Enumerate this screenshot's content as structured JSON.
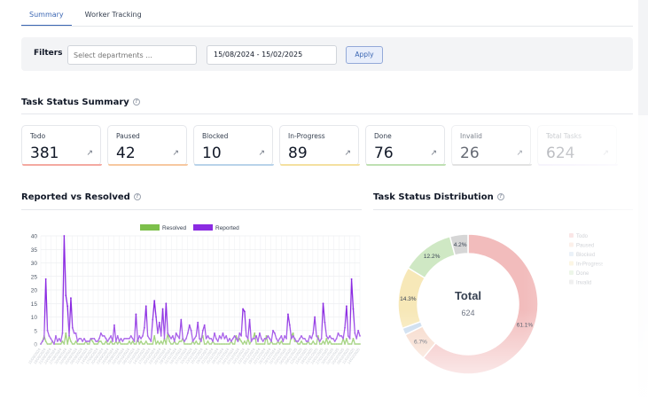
{
  "tabs": [
    {
      "label": "Summary",
      "active": true
    },
    {
      "label": "Worker Tracking",
      "active": false
    }
  ],
  "filters": {
    "label": "Filters",
    "department_placeholder": "Select departments ...",
    "date_range": "15/08/2024 - 15/02/2025",
    "apply_label": "Apply"
  },
  "summary": {
    "title": "Task Status Summary",
    "cards": [
      {
        "label": "Todo",
        "value": "381",
        "color": "#f4a9a1"
      },
      {
        "label": "Paused",
        "value": "42",
        "color": "#f7c8a0"
      },
      {
        "label": "Blocked",
        "value": "10",
        "color": "#b9d3ea"
      },
      {
        "label": "In-Progress",
        "value": "89",
        "color": "#f4e0a0"
      },
      {
        "label": "Done",
        "value": "76",
        "color": "#bfe0b3"
      },
      {
        "label": "Invalid",
        "value": "26",
        "color": "#d4d4d4"
      },
      {
        "label": "Total Tasks",
        "value": "624",
        "color": "#e5dcf7"
      }
    ]
  },
  "reported_resolved": {
    "title": "Reported vs Resolved"
  },
  "distribution": {
    "title": "Task Status Distribution",
    "center_label": "Total",
    "center_value": "624"
  },
  "chart_data": [
    {
      "type": "line",
      "title": "Reported vs Resolved",
      "ylim": [
        0,
        40
      ],
      "yticks": [
        0,
        5,
        10,
        15,
        20,
        25,
        30,
        35,
        40
      ],
      "xtick_labels": [
        "15/08/2024",
        "18/08/2024",
        "21/08/2024",
        "24/08/2024",
        "27/08/2024",
        "30/08/2024",
        "02/09/2024",
        "05/09/2024",
        "08/09/2024",
        "11/09/2024",
        "14/09/2024",
        "17/09/2024",
        "20/09/2024",
        "23/09/2024",
        "26/09/2024",
        "29/09/2024",
        "02/10/2024",
        "05/10/2024",
        "08/10/2024",
        "11/10/2024",
        "14/10/2024",
        "17/10/2024",
        "20/10/2024",
        "23/10/2024",
        "26/10/2024",
        "29/10/2024",
        "01/11/2024",
        "04/11/2024",
        "07/11/2024",
        "10/11/2024",
        "13/11/2024",
        "16/11/2024",
        "19/11/2024",
        "22/11/2024",
        "25/11/2024",
        "28/11/2024",
        "01/12/2024",
        "04/12/2024",
        "07/12/2024",
        "10/12/2024",
        "13/12/2024",
        "16/12/2024",
        "19/12/2024",
        "22/12/2024",
        "25/12/2024",
        "28/12/2024",
        "31/12/2024",
        "03/01/2025",
        "06/01/2025",
        "09/01/2025",
        "12/01/2025",
        "15/01/2025",
        "18/01/2025",
        "21/01/2025",
        "24/01/2025",
        "27/01/2025",
        "30/01/2025",
        "02/02/2025",
        "05/02/2025",
        "08/02/2025",
        "11/02/2025",
        "14/02/2025"
      ],
      "legend": [
        "Resolved",
        "Reported"
      ],
      "legend_position": "top",
      "series": [
        {
          "name": "Resolved",
          "color": "#7dc04b",
          "values": [
            0,
            1,
            3,
            1,
            0,
            0,
            0,
            1,
            0,
            0,
            0,
            0,
            0,
            1,
            0,
            4,
            0,
            3,
            1,
            0,
            0,
            1,
            0,
            0,
            0,
            0,
            0,
            1,
            0,
            0,
            2,
            1,
            0,
            0,
            0,
            1,
            1,
            0,
            0,
            1,
            0,
            0,
            1,
            0,
            0,
            1,
            0,
            1,
            0,
            0,
            0,
            0,
            0,
            1,
            0,
            1,
            0,
            0,
            2,
            0,
            1,
            0,
            0,
            1,
            0,
            0,
            0,
            0,
            3,
            0,
            1,
            0,
            1,
            0,
            2,
            0,
            4,
            1,
            0,
            0,
            1,
            0,
            0,
            1,
            1,
            2,
            0,
            0,
            0,
            0,
            0,
            1,
            0,
            1,
            0,
            0,
            2,
            3,
            0,
            0,
            1,
            0,
            0,
            1,
            0,
            0,
            0,
            0,
            0,
            0,
            0,
            0,
            0,
            0,
            1,
            0,
            0,
            3,
            1,
            2,
            1,
            0,
            1,
            0,
            2,
            0,
            1,
            2,
            4,
            0,
            0,
            0,
            0,
            0,
            0,
            3,
            0,
            0,
            1,
            0,
            0,
            0,
            1,
            0,
            1,
            0,
            0,
            0,
            0,
            0,
            3,
            4,
            1,
            1,
            0,
            0,
            1,
            0,
            0,
            0,
            1,
            0,
            0,
            1,
            0,
            0,
            3,
            0,
            0,
            1,
            0,
            2,
            0,
            1,
            0,
            0,
            0,
            0,
            0,
            0,
            0,
            2,
            0,
            2,
            0,
            0,
            0,
            2,
            0,
            0,
            0,
            0
          ]
        },
        {
          "name": "Reported",
          "color": "#8b2be2",
          "values": [
            0,
            1,
            2,
            24,
            5,
            3,
            2,
            1,
            0,
            3,
            1,
            2,
            1,
            4,
            40,
            18,
            14,
            3,
            17,
            6,
            4,
            4,
            1,
            2,
            2,
            1,
            2,
            1,
            1,
            1,
            2,
            2,
            2,
            1,
            1,
            2,
            4,
            3,
            3,
            2,
            1,
            2,
            3,
            1,
            7,
            1,
            3,
            1,
            2,
            1,
            2,
            2,
            2,
            2,
            3,
            2,
            1,
            11,
            1,
            3,
            2,
            3,
            6,
            14,
            3,
            2,
            1,
            9,
            16,
            10,
            4,
            8,
            3,
            13,
            2,
            15,
            4,
            3,
            2,
            3,
            1,
            4,
            3,
            2,
            9,
            2,
            1,
            2,
            4,
            7,
            5,
            1,
            2,
            3,
            8,
            2,
            1,
            5,
            7,
            2,
            3,
            2,
            2,
            1,
            4,
            2,
            1,
            3,
            2,
            4,
            2,
            3,
            1,
            2,
            1,
            2,
            3,
            2,
            1,
            4,
            3,
            13,
            12,
            3,
            2,
            9,
            1,
            2,
            2,
            3,
            1,
            4,
            2,
            1,
            2,
            2,
            3,
            2,
            1,
            5,
            4,
            2,
            1,
            2,
            3,
            1,
            3,
            2,
            11,
            7,
            2,
            3,
            2,
            1,
            1,
            2,
            3,
            2,
            2,
            1,
            1,
            3,
            2,
            4,
            10,
            3,
            2,
            1,
            2,
            15,
            8,
            3,
            2,
            3,
            2,
            2,
            1,
            2,
            4,
            3,
            3,
            2,
            6,
            14,
            3,
            2,
            24,
            13,
            4,
            2,
            5,
            3
          ]
        }
      ]
    },
    {
      "type": "pie",
      "title": "Task Status Distribution",
      "categories": [
        "Todo",
        "Paused",
        "Blocked",
        "In-Progress",
        "Done",
        "Invalid"
      ],
      "values": [
        381,
        42,
        10,
        89,
        76,
        26
      ],
      "slice_labels": [
        "61.1%",
        "6.7%",
        "",
        "14.3%",
        "12.2%",
        "4.2%"
      ],
      "colors": [
        "#f2bcbc",
        "#f6d8c8",
        "#c9dbee",
        "#f7e8b8",
        "#cfe8c4",
        "#d6d6d6"
      ],
      "legend_position": "right"
    }
  ]
}
